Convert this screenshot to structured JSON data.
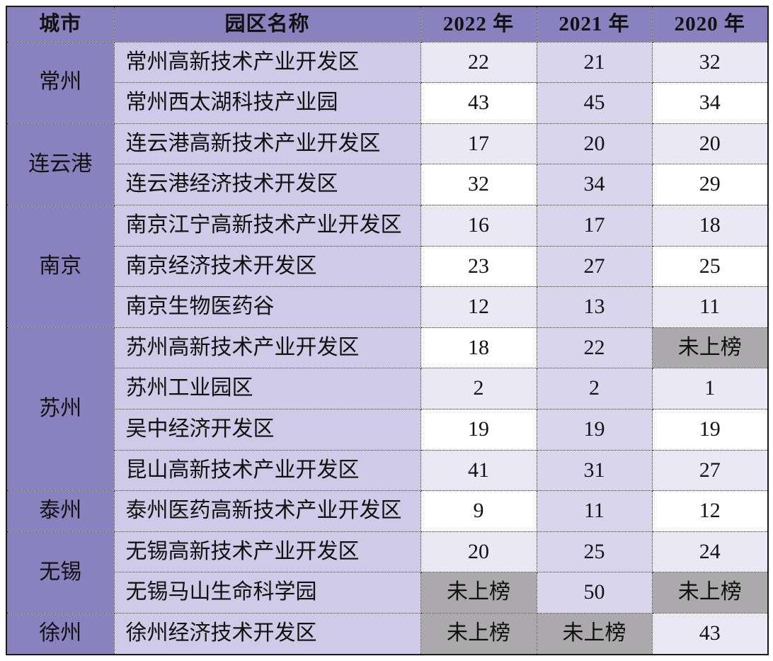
{
  "chart_data": {
    "type": "table",
    "title": "",
    "columns": [
      "城市",
      "园区名称",
      "2022 年",
      "2021 年",
      "2020 年"
    ],
    "rows": [
      [
        "常州",
        "常州高新技术产业开发区",
        "22",
        "21",
        "32"
      ],
      [
        "常州",
        "常州西太湖科技产业园",
        "43",
        "45",
        "34"
      ],
      [
        "连云港",
        "连云港高新技术产业开发区",
        "17",
        "20",
        "20"
      ],
      [
        "连云港",
        "连云港经济技术开发区",
        "32",
        "34",
        "29"
      ],
      [
        "南京",
        "南京江宁高新技术产业开发区",
        "16",
        "17",
        "18"
      ],
      [
        "南京",
        "南京经济技术开发区",
        "23",
        "27",
        "25"
      ],
      [
        "南京",
        "南京生物医药谷",
        "12",
        "13",
        "11"
      ],
      [
        "苏州",
        "苏州高新技术产业开发区",
        "18",
        "22",
        "未上榜"
      ],
      [
        "苏州",
        "苏州工业园区",
        "2",
        "2",
        "1"
      ],
      [
        "苏州",
        "吴中经济开发区",
        "19",
        "19",
        "19"
      ],
      [
        "苏州",
        "昆山高新技术产业开发区",
        "41",
        "31",
        "27"
      ],
      [
        "泰州",
        "泰州医药高新技术产业开发区",
        "9",
        "11",
        "12"
      ],
      [
        "无锡",
        "无锡高新技术产业开发区",
        "20",
        "25",
        "24"
      ],
      [
        "无锡",
        "无锡马山生命科学园",
        "未上榜",
        "50",
        "未上榜"
      ],
      [
        "徐州",
        "徐州经济技术开发区",
        "未上榜",
        "未上榜",
        "43"
      ]
    ],
    "layout_hints": {
      "grouped_by_city_rowspan": true,
      "grid": "dotted"
    }
  },
  "labels": {
    "not_listed": "未上榜"
  },
  "colors": {
    "header_bg": "#8982BF",
    "city_bg": "#8982BF",
    "park_bg": "#CECAE8",
    "year_2021_bg": "#D8D5EC",
    "row_tint": "#EAE8F5",
    "row_white": "#FFFFFF",
    "not_listed_bg": "#ABA9AB",
    "text": "#111111"
  }
}
